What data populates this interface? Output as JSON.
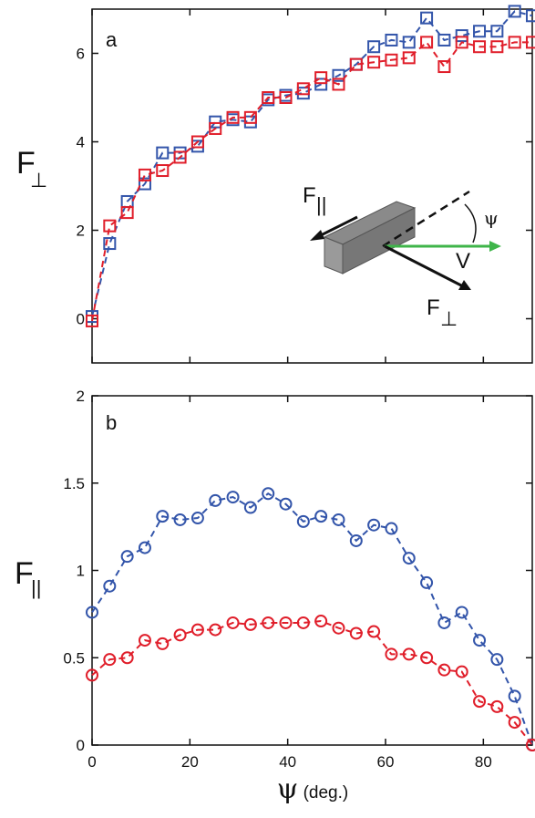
{
  "colors": {
    "blue": "#3355aa",
    "red": "#e01e2a",
    "green": "#3fb54a",
    "axis": "#111111"
  },
  "panel_a": {
    "letter": "a",
    "ylabel_main": "F",
    "ylabel_sub": "⊥",
    "inset": {
      "f_parallel_main": "F",
      "f_parallel_sub": "||",
      "psi": "ψ",
      "v": "V",
      "f_perp_main": "F",
      "f_perp_sub": "⊥"
    }
  },
  "panel_b": {
    "letter": "b",
    "ylabel_main": "F",
    "ylabel_sub": "||"
  },
  "xlabel": {
    "symbol": "ψ",
    "unit": " (deg.)"
  },
  "chart_data": [
    {
      "type": "line",
      "panel": "a",
      "marker": "square",
      "xlim": [
        0,
        90
      ],
      "ylim": [
        -1,
        7
      ],
      "xticks": [
        "0",
        "20",
        "40",
        "60",
        "80"
      ],
      "yticks": [
        "0",
        "2",
        "4",
        "6"
      ],
      "series": [
        {
          "color": "blue",
          "x": [
            0,
            3.6,
            7.2,
            10.8,
            14.4,
            18,
            21.6,
            25.2,
            28.8,
            32.4,
            36,
            39.6,
            43.2,
            46.8,
            50.4,
            54,
            57.6,
            61.2,
            64.8,
            68.4,
            72,
            75.6,
            79.2,
            82.8,
            86.4,
            90
          ],
          "y": [
            0.05,
            1.7,
            2.65,
            3.05,
            3.75,
            3.75,
            3.9,
            4.45,
            4.5,
            4.45,
            4.95,
            5.05,
            5.1,
            5.3,
            5.5,
            5.75,
            6.15,
            6.3,
            6.25,
            6.8,
            6.3,
            6.4,
            6.5,
            6.5,
            6.95,
            6.85
          ]
        },
        {
          "color": "red",
          "x": [
            0,
            3.6,
            7.2,
            10.8,
            14.4,
            18,
            21.6,
            25.2,
            28.8,
            32.4,
            36,
            39.6,
            43.2,
            46.8,
            50.4,
            54,
            57.6,
            61.2,
            64.8,
            68.4,
            72,
            75.6,
            79.2,
            82.8,
            86.4,
            90
          ],
          "y": [
            -0.05,
            2.1,
            2.4,
            3.25,
            3.35,
            3.65,
            4.0,
            4.3,
            4.55,
            4.55,
            5.0,
            5.0,
            5.2,
            5.45,
            5.3,
            5.75,
            5.8,
            5.85,
            5.9,
            6.25,
            5.7,
            6.25,
            6.15,
            6.15,
            6.25,
            6.25
          ]
        }
      ]
    },
    {
      "type": "line",
      "panel": "b",
      "marker": "circle",
      "xlim": [
        0,
        90
      ],
      "ylim": [
        0,
        2
      ],
      "xticks": [
        "0",
        "20",
        "40",
        "60",
        "80"
      ],
      "yticks": [
        "0",
        "0.5",
        "1",
        "1.5",
        "2"
      ],
      "series": [
        {
          "color": "blue",
          "x": [
            0,
            3.6,
            7.2,
            10.8,
            14.4,
            18,
            21.6,
            25.2,
            28.8,
            32.4,
            36,
            39.6,
            43.2,
            46.8,
            50.4,
            54,
            57.6,
            61.2,
            64.8,
            68.4,
            72,
            75.6,
            79.2,
            82.8,
            86.4,
            90
          ],
          "y": [
            0.76,
            0.91,
            1.08,
            1.13,
            1.31,
            1.29,
            1.3,
            1.4,
            1.42,
            1.36,
            1.44,
            1.38,
            1.28,
            1.31,
            1.29,
            1.17,
            1.26,
            1.24,
            1.07,
            0.93,
            0.7,
            0.76,
            0.6,
            0.49,
            0.28,
            0.0
          ]
        },
        {
          "color": "red",
          "x": [
            0,
            3.6,
            7.2,
            10.8,
            14.4,
            18,
            21.6,
            25.2,
            28.8,
            32.4,
            36,
            39.6,
            43.2,
            46.8,
            50.4,
            54,
            57.6,
            61.2,
            64.8,
            68.4,
            72,
            75.6,
            79.2,
            82.8,
            86.4,
            90
          ],
          "y": [
            0.4,
            0.49,
            0.5,
            0.6,
            0.58,
            0.63,
            0.66,
            0.66,
            0.7,
            0.69,
            0.7,
            0.7,
            0.7,
            0.71,
            0.67,
            0.64,
            0.65,
            0.52,
            0.52,
            0.5,
            0.43,
            0.42,
            0.25,
            0.22,
            0.13,
            0.0
          ]
        }
      ]
    }
  ]
}
